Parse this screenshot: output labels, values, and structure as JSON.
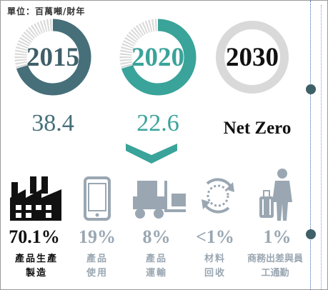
{
  "unit_label": "單位：百萬噸/財年",
  "colors": {
    "ring_2015": "#466f7a",
    "ring_2020": "#3aa39a",
    "ring_2030": "#d9d9d9",
    "track": "#d9d9d9",
    "icon_gray": "#9aa7b2",
    "icon_dark": "#111111",
    "timeline_dot": "#3f6068"
  },
  "years": [
    {
      "year": "2015",
      "value": "38.4",
      "ring_fill_fraction": 0.7
    },
    {
      "year": "2020",
      "value": "22.6",
      "ring_fill_fraction": 0.7
    },
    {
      "year": "2030",
      "value": "Net Zero",
      "ring_fill_fraction": 0.0
    }
  ],
  "categories": [
    {
      "icon": "factory-icon",
      "percent": "70.1%",
      "label_line1": "產品生產",
      "label_line2": "製造"
    },
    {
      "icon": "smartphone-icon",
      "percent": "19%",
      "label_line1": "產品",
      "label_line2": "使用"
    },
    {
      "icon": "forklift-icon",
      "percent": "8%",
      "label_line1": "產品",
      "label_line2": "運輸"
    },
    {
      "icon": "recycle-icon",
      "percent": "<1%",
      "label_line1": "材料",
      "label_line2": "回收"
    },
    {
      "icon": "business-traveler-icon",
      "percent": "1%",
      "label_line1": "商務出差與員",
      "label_line2": "工通勤"
    }
  ]
}
